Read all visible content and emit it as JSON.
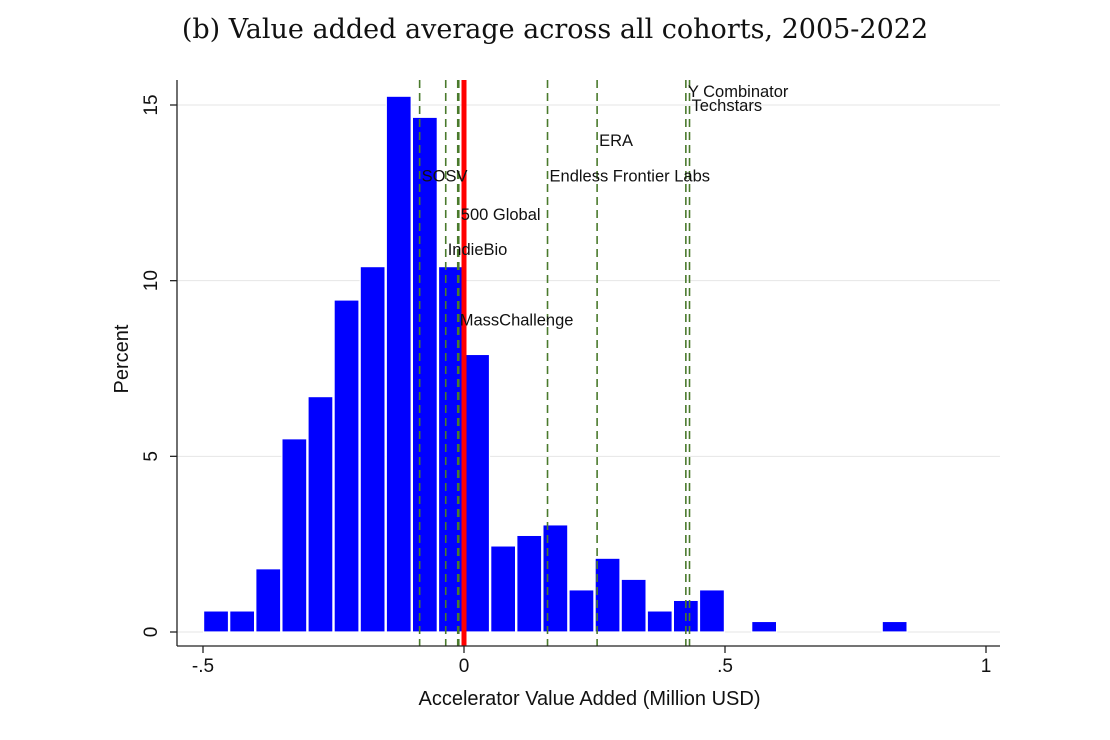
{
  "chart_data": {
    "type": "bar",
    "title": "(b) Value added average across all cohorts, 2005-2022",
    "xlabel": "Accelerator Value Added (Million USD)",
    "ylabel": "Percent",
    "xlim": [
      -0.52,
      1.02
    ],
    "ylim": [
      -0.5,
      15.8
    ],
    "x_ticks": [
      {
        "value": -0.5,
        "label": "-.5"
      },
      {
        "value": 0,
        "label": "0"
      },
      {
        "value": 0.5,
        "label": ".5"
      },
      {
        "value": 1,
        "label": "1"
      }
    ],
    "y_ticks": [
      {
        "value": 0,
        "label": "0"
      },
      {
        "value": 5,
        "label": "5"
      },
      {
        "value": 10,
        "label": "10"
      },
      {
        "value": 15,
        "label": "15"
      }
    ],
    "grid": "horizontal",
    "bar_color": "#0000ff",
    "bin_width": 0.05,
    "bins": [
      {
        "x": -0.5,
        "value": 0.6
      },
      {
        "x": -0.45,
        "value": 0.6
      },
      {
        "x": -0.4,
        "value": 1.8
      },
      {
        "x": -0.35,
        "value": 5.5
      },
      {
        "x": -0.3,
        "value": 6.7
      },
      {
        "x": -0.25,
        "value": 9.45
      },
      {
        "x": -0.2,
        "value": 10.4
      },
      {
        "x": -0.15,
        "value": 15.25
      },
      {
        "x": -0.1,
        "value": 14.65
      },
      {
        "x": -0.05,
        "value": 10.4
      },
      {
        "x": 0.0,
        "value": 7.9
      },
      {
        "x": 0.05,
        "value": 2.45
      },
      {
        "x": 0.1,
        "value": 2.75
      },
      {
        "x": 0.15,
        "value": 3.05
      },
      {
        "x": 0.2,
        "value": 1.2
      },
      {
        "x": 0.25,
        "value": 2.1
      },
      {
        "x": 0.3,
        "value": 1.5
      },
      {
        "x": 0.35,
        "value": 0.6
      },
      {
        "x": 0.4,
        "value": 0.9
      },
      {
        "x": 0.45,
        "value": 1.2
      },
      {
        "x": 0.55,
        "value": 0.3
      },
      {
        "x": 0.8,
        "value": 0.3
      }
    ],
    "mean_line": {
      "x": 0.0,
      "color": "#ff0000"
    },
    "reference_lines": [
      {
        "name": "SOSV",
        "x": -0.085,
        "label_y": 13.0
      },
      {
        "name": "IndieBio",
        "x": -0.035,
        "label_y": 10.9
      },
      {
        "name": "500 Global",
        "x": -0.01,
        "label_y": 11.9
      },
      {
        "name": "MassChallenge",
        "x": -0.012,
        "label_y": 8.9
      },
      {
        "name": "Endless Frontier Labs",
        "x": 0.16,
        "label_y": 13.0
      },
      {
        "name": "ERA",
        "x": 0.255,
        "label_y": 14.0
      },
      {
        "name": "Techstars",
        "x": 0.432,
        "label_y": 15.0
      },
      {
        "name": "Y Combinator",
        "x": 0.425,
        "label_y": 15.4
      }
    ],
    "reference_line_color": "#4a7a2c"
  }
}
